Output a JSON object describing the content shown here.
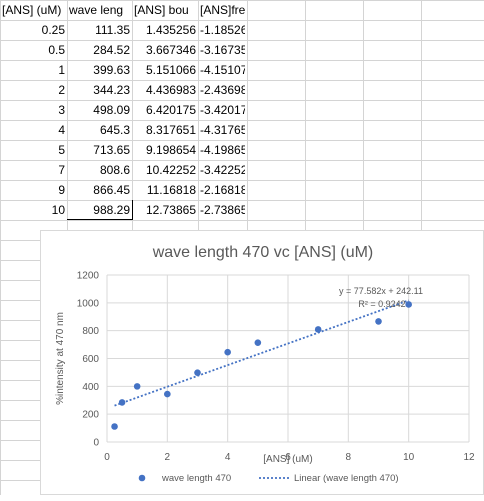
{
  "spreadsheet": {
    "headers": [
      "[ANS] (uM)",
      "wave leng",
      "[ANS] bou",
      "[ANS]free"
    ],
    "rows": [
      [
        "0.25",
        "111.35",
        "1.435256",
        "-1.18526"
      ],
      [
        "0.5",
        "284.52",
        "3.667346",
        "-3.16735"
      ],
      [
        "1",
        "399.63",
        "5.151066",
        "-4.15107"
      ],
      [
        "2",
        "344.23",
        "4.436983",
        "-2.43698"
      ],
      [
        "3",
        "498.09",
        "6.420175",
        "-3.42017"
      ],
      [
        "4",
        "645.3",
        "8.317651",
        "-4.31765"
      ],
      [
        "5",
        "713.65",
        "9.198654",
        "-4.19865"
      ],
      [
        "7",
        "808.6",
        "10.42252",
        "-3.42252"
      ],
      [
        "9",
        "866.45",
        "11.16818",
        "-2.16818"
      ],
      [
        "10",
        "988.29",
        "12.73865",
        "-2.73865"
      ]
    ]
  },
  "chart_data": {
    "type": "scatter",
    "title": "wave length 470 vc [ANS] (uM)",
    "xlabel": "[ANS] (uM)",
    "ylabel": "%intensity at 470 nm",
    "xlim": [
      0,
      12
    ],
    "ylim": [
      0,
      1200
    ],
    "x_ticks": [
      "0",
      "2",
      "4",
      "6",
      "8",
      "10",
      "12"
    ],
    "y_ticks": [
      "0",
      "200",
      "400",
      "600",
      "800",
      "1000",
      "1200"
    ],
    "grid": true,
    "legend": "bottom",
    "series": [
      {
        "name": "wave length 470",
        "color": "#4472c4",
        "x": [
          0.25,
          0.5,
          1,
          2,
          3,
          4,
          5,
          7,
          9,
          10
        ],
        "y": [
          111.35,
          284.52,
          399.63,
          344.23,
          498.09,
          645.3,
          713.65,
          808.6,
          866.45,
          988.29
        ]
      }
    ],
    "trendline": {
      "name": "Linear (wave length 470)",
      "slope": 77.582,
      "intercept": 242.11,
      "x_range": [
        0.25,
        10
      ],
      "color": "#4472c4"
    },
    "equation_label": "y = 77.582x + 242.11",
    "r2_label": "R² = 0.9242"
  }
}
